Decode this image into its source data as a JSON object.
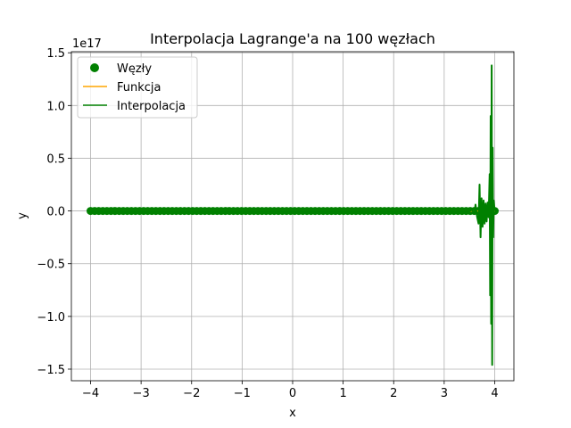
{
  "chart_data": {
    "type": "line",
    "title": "Interpolacja Lagrange'a na 100 węzłach",
    "xlabel": "x",
    "ylabel": "y",
    "offset_text": "1e17",
    "scale": 1e+17,
    "xlim": [
      -4.38,
      4.38
    ],
    "ylim": [
      -1.61,
      1.51
    ],
    "x_ticks": [
      -4,
      -3,
      -2,
      -1,
      0,
      1,
      2,
      3,
      4
    ],
    "x_tick_labels": [
      "−4",
      "−3",
      "−2",
      "−1",
      "0",
      "1",
      "2",
      "3",
      "4"
    ],
    "y_ticks": [
      -1.5,
      -1.0,
      -0.5,
      0.0,
      0.5,
      1.0,
      1.5
    ],
    "y_tick_labels": [
      "−1.5",
      "−1.0",
      "−0.5",
      "0.0",
      "0.5",
      "1.0",
      "1.5"
    ],
    "grid": true,
    "legend": {
      "position": "top-left",
      "entries": [
        {
          "label": "Węzły",
          "marker": "circle",
          "color": "#008000"
        },
        {
          "label": "Funkcja",
          "marker": "line",
          "color": "#ffa500"
        },
        {
          "label": "Interpolacja",
          "marker": "line",
          "color": "#008000"
        }
      ]
    },
    "series": [
      {
        "name": "Węzły",
        "kind": "scatter",
        "color": "#008000",
        "x_range": [
          -4,
          4
        ],
        "count": 100,
        "y": 0
      },
      {
        "name": "Funkcja",
        "kind": "line",
        "color": "#ffa500",
        "x_range": [
          -4,
          4
        ],
        "y": 0
      },
      {
        "name": "Interpolacja",
        "kind": "line",
        "color": "#008000",
        "x": [
          -4.0,
          3.5,
          3.55,
          3.6,
          3.62,
          3.65,
          3.68,
          3.7,
          3.72,
          3.74,
          3.76,
          3.78,
          3.8,
          3.82,
          3.84,
          3.86,
          3.88,
          3.9,
          3.91,
          3.92,
          3.93,
          3.94,
          3.95,
          3.96,
          3.97,
          3.98,
          4.0
        ],
        "y": [
          0.0,
          0.0,
          0.01,
          -0.02,
          0.06,
          -0.05,
          -0.12,
          0.25,
          -0.25,
          0.12,
          -0.15,
          0.1,
          -0.12,
          0.07,
          -0.1,
          0.08,
          -0.06,
          0.35,
          -0.8,
          0.9,
          -1.07,
          1.38,
          -1.46,
          0.6,
          -0.25,
          0.1,
          0.0
        ]
      }
    ]
  }
}
